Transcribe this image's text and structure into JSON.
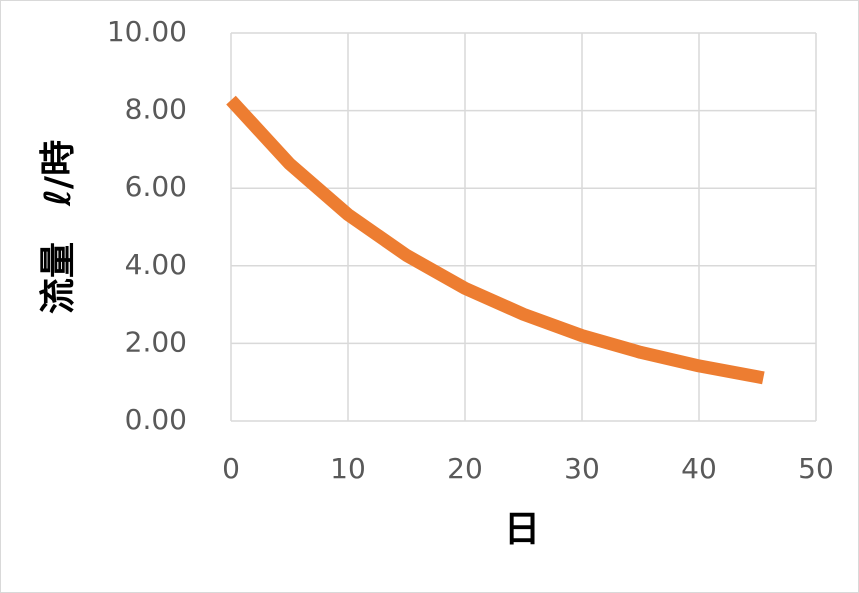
{
  "chart_data": {
    "type": "line",
    "x_label": "日",
    "y_label": "流量　ℓ/時",
    "x": [
      0,
      5,
      10,
      15,
      20,
      25,
      30,
      35,
      40,
      45,
      45.5
    ],
    "series": [
      {
        "color": "#ed7d31",
        "values": [
          8.27,
          6.63,
          5.32,
          4.27,
          3.42,
          2.75,
          2.2,
          1.77,
          1.42,
          1.14,
          1.11
        ]
      }
    ],
    "xlim": [
      0,
      50
    ],
    "xticks": [
      0,
      10,
      20,
      30,
      40,
      50
    ],
    "ylim": [
      0,
      10
    ],
    "yticks": [
      {
        "value": 0,
        "label": "0.00"
      },
      {
        "value": 2,
        "label": "2.00"
      },
      {
        "value": 4,
        "label": "4.00"
      },
      {
        "value": 6,
        "label": "6.00"
      },
      {
        "value": 8,
        "label": "8.00"
      },
      {
        "value": 10,
        "label": "10.00"
      }
    ],
    "grid": true
  }
}
